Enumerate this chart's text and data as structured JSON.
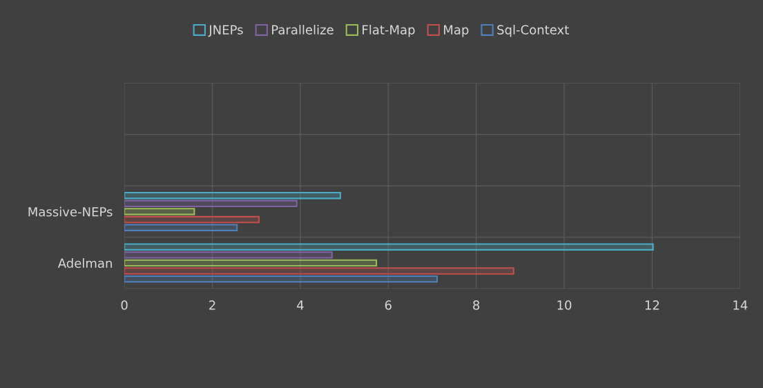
{
  "chart_data": {
    "type": "bar",
    "orientation": "horizontal",
    "categories": [
      null,
      null,
      "Massive-NEPs",
      "Adelman"
    ],
    "series": [
      {
        "name": "JNEPs",
        "color": "#4bacc6",
        "values": [
          null,
          null,
          4.91,
          12.02
        ]
      },
      {
        "name": "Parallelize",
        "color": "#8064a2",
        "values": [
          null,
          null,
          3.92,
          4.72
        ]
      },
      {
        "name": "Flat-Map",
        "color": "#9bbb59",
        "values": [
          null,
          null,
          1.59,
          5.73
        ]
      },
      {
        "name": "Map",
        "color": "#c0504d",
        "values": [
          null,
          null,
          3.06,
          8.85
        ]
      },
      {
        "name": "Sql-Context",
        "color": "#4f81bd",
        "values": [
          null,
          null,
          2.56,
          7.11
        ]
      }
    ],
    "xlim": [
      0,
      14
    ],
    "xticks": [
      0,
      2,
      4,
      6,
      8,
      10,
      12,
      14
    ],
    "grid": true,
    "legend": "top"
  }
}
